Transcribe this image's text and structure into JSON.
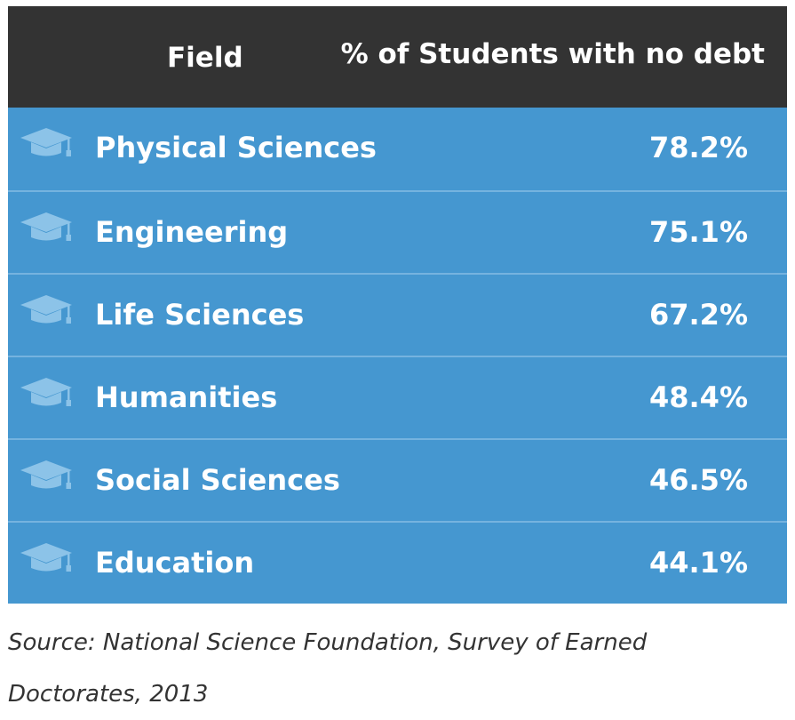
{
  "chart_data": {
    "type": "table",
    "columns": [
      "Field",
      "% of Students with no debt"
    ],
    "rows": [
      {
        "field": "Physical Sciences",
        "value": 78.2,
        "display": "78.2%"
      },
      {
        "field": "Engineering",
        "value": 75.1,
        "display": "75.1%"
      },
      {
        "field": "Life Sciences",
        "value": 67.2,
        "display": "67.2%"
      },
      {
        "field": "Humanities",
        "value": 48.4,
        "display": "48.4%"
      },
      {
        "field": "Social Sciences",
        "value": 46.5,
        "display": "46.5%"
      },
      {
        "field": "Education",
        "value": 44.1,
        "display": "44.1%"
      }
    ],
    "source": "Source: National Science Foundation, Survey of Earned Doctorates, 2013"
  },
  "colors": {
    "header_bg": "#333333",
    "row_bg": "#4597d0",
    "divider": "#75b3df",
    "icon": "#8cc3e8",
    "text": "#ffffff",
    "source_text": "#333333"
  },
  "icon": "graduation-cap-icon"
}
